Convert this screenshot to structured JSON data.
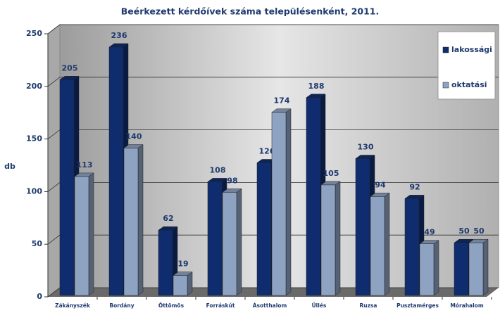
{
  "chart_data": {
    "type": "bar3d",
    "title": "Beérkezett kérdőívek száma településenként, 2011.",
    "y_label": "db",
    "categories": [
      "Zákányszék",
      "Bordány",
      "Öttömös",
      "Forráskút",
      "Ásotthalom",
      "Üllés",
      "Ruzsa",
      "Pusztamérges",
      "Mórahalom"
    ],
    "series": [
      {
        "name": "lakossági",
        "color": "#0f2d6e",
        "values": [
          205,
          236,
          62,
          108,
          126,
          188,
          130,
          92,
          50
        ]
      },
      {
        "name": "oktatási",
        "color": "#8ea2c2",
        "values": [
          113,
          140,
          19,
          98,
          174,
          105,
          94,
          49,
          50
        ]
      }
    ],
    "ylim": [
      0,
      250
    ],
    "yticks": [
      0,
      50,
      100,
      150,
      200,
      250
    ],
    "grid": true,
    "legend": "right"
  }
}
